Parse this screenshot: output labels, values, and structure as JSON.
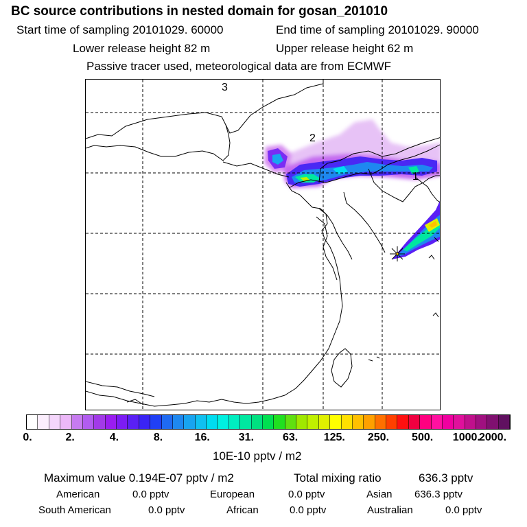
{
  "header": {
    "title": "BC  source contributions in nested domain for gosan_201010",
    "start_label": "Start time of sampling 20101029. 60000",
    "end_label": "End time of sampling 20101029. 90000",
    "lower_release": "Lower release height   82 m",
    "upper_release": "Upper release height   62 m",
    "tracer_note": "Passive tracer used, meteorological data are from ECMWF"
  },
  "map": {
    "region_labels": [
      "3",
      "2",
      "1"
    ],
    "receptor_marker": "star-marker"
  },
  "colorbar": {
    "tick_labels": [
      "0.",
      "2.",
      "4.",
      "8.",
      "16.",
      "31.",
      "63.",
      "125.",
      "250.",
      "500.",
      "1000.",
      "2000."
    ],
    "unit": "10E-10 pptv / m2",
    "colors": [
      "#ffffff",
      "#fbeefd",
      "#f4d6fb",
      "#ecb8f8",
      "#c77bf0",
      "#b25cf0",
      "#a23ae8",
      "#9a1df0",
      "#7c1cf4",
      "#5a20f5",
      "#3a24f4",
      "#2040f5",
      "#1f6af2",
      "#1e88f0",
      "#18a4f0",
      "#10c0f0",
      "#00dcf0",
      "#00f0e0",
      "#00eec0",
      "#00e8a0",
      "#00e080",
      "#00e050",
      "#20e020",
      "#60e010",
      "#a0e800",
      "#c0f000",
      "#e0f000",
      "#ffff00",
      "#ffe000",
      "#ffc000",
      "#ffa000",
      "#ff7000",
      "#ff4000",
      "#ff1010",
      "#f00040",
      "#ff0080",
      "#ff10a0",
      "#f000a0",
      "#e0109c",
      "#c0108c",
      "#a01080",
      "#801070",
      "#601060"
    ]
  },
  "stats": {
    "max_label": "Maximum value  0.194E-07 pptv / m2",
    "total_label": "Total mixing ratio",
    "total_value": "636.3 pptv",
    "sources": [
      {
        "name": "American",
        "value": "0.0 pptv"
      },
      {
        "name": "European",
        "value": "0.0 pptv"
      },
      {
        "name": "Asian",
        "value": "636.3 pptv"
      },
      {
        "name": "South American",
        "value": "0.0 pptv"
      },
      {
        "name": "African",
        "value": "0.0 pptv"
      },
      {
        "name": "Australian",
        "value": "0.0 pptv"
      }
    ]
  }
}
